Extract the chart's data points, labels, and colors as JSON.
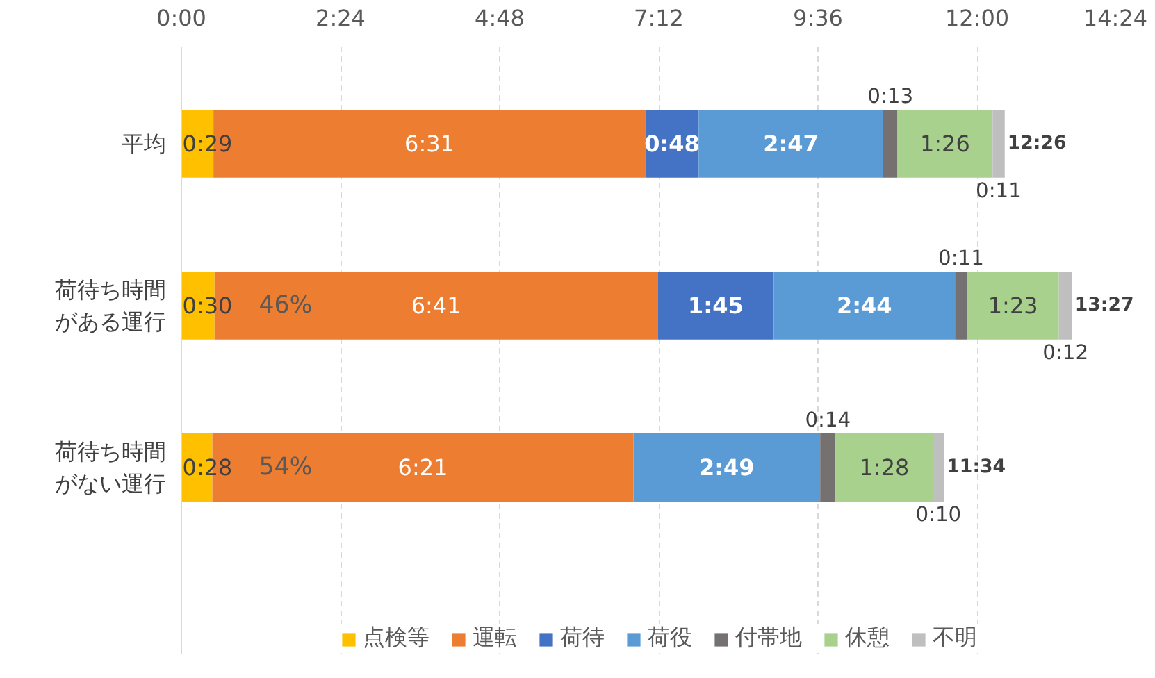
{
  "chart_data": {
    "type": "bar",
    "orientation": "horizontal",
    "stacked": true,
    "categories": [
      "平均",
      "荷待ち時間がある運行",
      "荷待ち時間がない運行"
    ],
    "xlim": [
      0,
      864
    ],
    "xticks": [
      {
        "value": 0,
        "label": "0:00"
      },
      {
        "value": 144,
        "label": "2:24"
      },
      {
        "value": 288,
        "label": "4:48"
      },
      {
        "value": 432,
        "label": "7:12"
      },
      {
        "value": 576,
        "label": "9:36"
      },
      {
        "value": 720,
        "label": "12:00"
      },
      {
        "value": 864,
        "label": "14:24"
      }
    ],
    "grid": "x",
    "legend": "bottom",
    "series": [
      {
        "name": "点検等",
        "color": "#ffc000",
        "values": [
          29,
          30,
          28
        ],
        "value_labels": [
          "0:29",
          "0:30",
          "0:28"
        ]
      },
      {
        "name": "運転",
        "color": "#ed7d31",
        "values": [
          391,
          401,
          381
        ],
        "value_labels": [
          "6:31",
          "6:41",
          "6:21"
        ]
      },
      {
        "name": "荷待",
        "color": "#4472c4",
        "values": [
          48,
          105,
          null
        ],
        "value_labels": [
          "0:48",
          "1:45",
          null
        ]
      },
      {
        "name": "荷役",
        "color": "#5b9bd5",
        "values": [
          167,
          164,
          169
        ],
        "value_labels": [
          "2:47",
          "2:44",
          "2:49"
        ]
      },
      {
        "name": "付帯地",
        "color": "#767171",
        "values": [
          13,
          11,
          14
        ],
        "value_labels": [
          "0:13",
          "0:11",
          "0:14"
        ]
      },
      {
        "name": "休憩",
        "color": "#a9d18e",
        "values": [
          86,
          83,
          88
        ],
        "value_labels": [
          "1:26",
          "1:23",
          "1:28"
        ]
      },
      {
        "name": "不明",
        "color": "#bfbfbf",
        "values": [
          11,
          12,
          10
        ],
        "value_labels": [
          "0:11",
          "0:12",
          "0:10"
        ]
      }
    ],
    "totals": [
      "12:26",
      "13:27",
      "11:34"
    ],
    "annotations": [
      "46%",
      "54%"
    ]
  }
}
